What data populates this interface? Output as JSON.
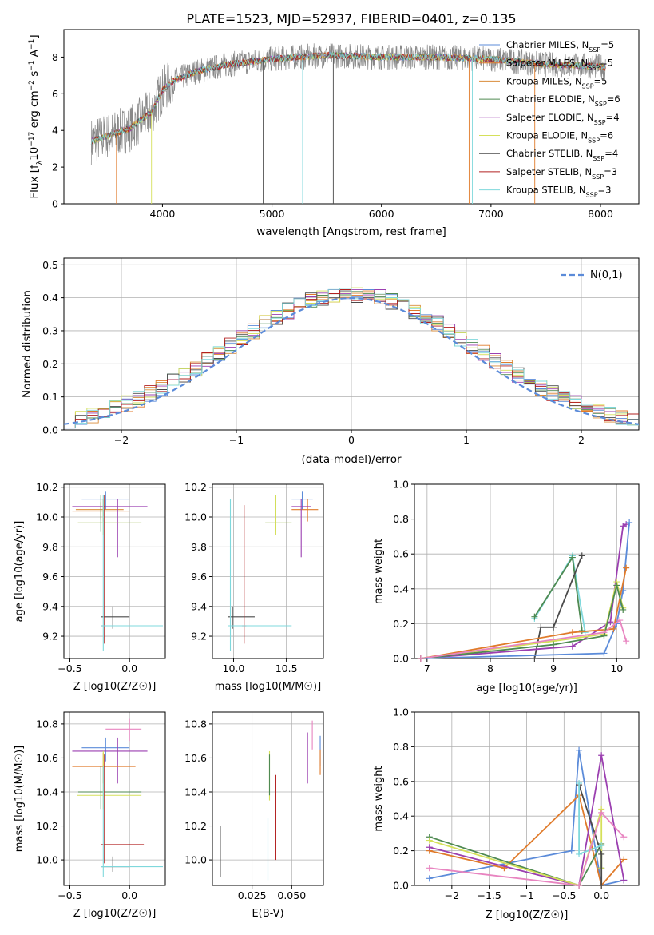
{
  "title": "PLATE=1523, MJD=52937, FIBERID=0401, z=0.135",
  "colors": {
    "c1": "#5b8bd9",
    "c2": "#e07b2b",
    "c3": "#d98b3a",
    "c4": "#4f8a52",
    "c5": "#9b3fb0",
    "c6": "#d5e05a",
    "c7": "#4a4a4a",
    "c8": "#b22020",
    "c9": "#7fd8dc",
    "pink": "#e884c0",
    "data": "#888888"
  },
  "legend_models": [
    {
      "label": "Chabrier MILES, N",
      "sub": "SSP",
      "tail": "=5",
      "color": "c1"
    },
    {
      "label": "Salpeter MILES, N",
      "sub": "SSP",
      "tail": "=5",
      "color": "c2"
    },
    {
      "label": "Kroupa MILES, N",
      "sub": "SSP",
      "tail": "=5",
      "color": "c3"
    },
    {
      "label": "Chabrier ELODIE, N",
      "sub": "SSP",
      "tail": "=6",
      "color": "c4"
    },
    {
      "label": "Salpeter ELODIE, N",
      "sub": "SSP",
      "tail": "=4",
      "color": "c5"
    },
    {
      "label": "Kroupa ELODIE, N",
      "sub": "SSP",
      "tail": "=6",
      "color": "c6"
    },
    {
      "label": "Chabrier STELIB, N",
      "sub": "SSP",
      "tail": "=4",
      "color": "c7"
    },
    {
      "label": "Salpeter STELIB, N",
      "sub": "SSP",
      "tail": "=3",
      "color": "c8"
    },
    {
      "label": "Kroupa STELIB, N",
      "sub": "SSP",
      "tail": "=3",
      "color": "c9"
    }
  ],
  "chart_data": [
    {
      "type": "line",
      "id": "spectrum",
      "xlabel": "wavelength [Angstrom, rest frame]",
      "ylabel": "Flux [f",
      "xlim": [
        3100,
        8350
      ],
      "ylim": [
        0,
        9.5
      ],
      "xticks": [
        4000,
        5000,
        6000,
        7000,
        8000
      ],
      "yticks": [
        0,
        2,
        4,
        6,
        8
      ],
      "continuum_x": [
        3350,
        3500,
        3700,
        3900,
        4000,
        4100,
        4300,
        4600,
        5000,
        5500,
        6000,
        6500,
        7000,
        7500,
        8000,
        8050
      ],
      "continuum_y": [
        3.4,
        3.7,
        4.1,
        5.0,
        6.2,
        6.7,
        7.2,
        7.6,
        7.9,
        8.1,
        8.0,
        8.0,
        7.9,
        7.6,
        7.5,
        7.4
      ]
    },
    {
      "type": "line",
      "id": "residuals",
      "xlabel": "(data-model)/error",
      "ylabel": "Normed distribution",
      "legend": "N(0,1)",
      "xlim": [
        -2.5,
        2.5
      ],
      "ylim": [
        0,
        0.52
      ],
      "xticks": [
        -2,
        -1,
        0,
        1,
        2
      ],
      "yticks": [
        0.0,
        0.1,
        0.2,
        0.3,
        0.4,
        0.5
      ],
      "bins": [
        -2.5,
        -2.4,
        -2.3,
        -2.2,
        -2.1,
        -2.0,
        -1.9,
        -1.8,
        -1.7,
        -1.6,
        -1.5,
        -1.4,
        -1.3,
        -1.2,
        -1.1,
        -1.0,
        -0.9,
        -0.8,
        -0.7,
        -0.6,
        -0.5,
        -0.4,
        -0.3,
        -0.2,
        -0.1,
        0.0,
        0.1,
        0.2,
        0.3,
        0.4,
        0.5,
        0.6,
        0.7,
        0.8,
        0.9,
        1.0,
        1.1,
        1.2,
        1.3,
        1.4,
        1.5,
        1.6,
        1.7,
        1.8,
        1.9,
        2.0,
        2.1,
        2.2,
        2.3,
        2.4,
        2.5
      ]
    },
    {
      "type": "scatter",
      "id": "age_vs_Z",
      "xlabel": "Z [log10(Z/Z☉)]",
      "ylabel": "age [log10(age/yr)]",
      "xlim": [
        -0.55,
        0.3
      ],
      "ylim": [
        9.05,
        10.22
      ],
      "xticks": [
        -0.5,
        0.0
      ],
      "yticks": [
        9.2,
        9.4,
        9.6,
        9.8,
        10.0,
        10.2
      ],
      "points": [
        {
          "c": "c1",
          "x": -0.2,
          "y": 10.12,
          "xe": [
            -0.4,
            -0.0
          ],
          "ye": [
            10.05,
            10.17
          ]
        },
        {
          "c": "c2",
          "x": -0.22,
          "y": 10.04,
          "xe": [
            -0.48,
            0.0
          ],
          "ye": [
            9.97,
            10.12
          ]
        },
        {
          "c": "c3",
          "x": -0.24,
          "y": 10.05,
          "xe": [
            -0.45,
            -0.05
          ],
          "ye": [
            9.98,
            10.1
          ]
        },
        {
          "c": "c4",
          "x": -0.24,
          "y": 9.96,
          "xe": [
            -0.43,
            0.1
          ],
          "ye": [
            9.9,
            10.15
          ]
        },
        {
          "c": "c5",
          "x": -0.1,
          "y": 10.07,
          "xe": [
            -0.48,
            0.15
          ],
          "ye": [
            9.73,
            10.12
          ]
        },
        {
          "c": "c6",
          "x": -0.22,
          "y": 9.96,
          "xe": [
            -0.44,
            0.1
          ],
          "ye": [
            9.88,
            10.12
          ]
        },
        {
          "c": "c7",
          "x": -0.14,
          "y": 9.33,
          "xe": [
            -0.24,
            -0.0
          ],
          "ye": [
            9.25,
            9.4
          ]
        },
        {
          "c": "c8",
          "x": -0.21,
          "y": 9.27,
          "xe": [
            -0.24,
            -0.2
          ],
          "ye": [
            9.15,
            10.15
          ]
        },
        {
          "c": "c9",
          "x": -0.22,
          "y": 9.27,
          "xe": [
            -0.24,
            0.28
          ],
          "ye": [
            9.1,
            10.15
          ]
        }
      ]
    },
    {
      "type": "scatter",
      "id": "age_vs_mass",
      "xlabel": "mass [log10(M/M☉)]",
      "ylabel": "",
      "xlim": [
        9.8,
        10.85
      ],
      "ylim": [
        9.05,
        10.22
      ],
      "xticks": [
        10.0,
        10.5
      ],
      "yticks": [
        9.2,
        9.4,
        9.6,
        9.8,
        10.0,
        10.2
      ],
      "points": [
        {
          "c": "c1",
          "x": 10.65,
          "y": 10.12,
          "xe": [
            10.55,
            10.75
          ],
          "ye": [
            10.05,
            10.17
          ]
        },
        {
          "c": "c2",
          "x": 10.7,
          "y": 10.05,
          "xe": [
            10.55,
            10.8
          ],
          "ye": [
            9.97,
            10.12
          ]
        },
        {
          "c": "c5",
          "x": 10.64,
          "y": 10.07,
          "xe": [
            10.55,
            10.73
          ],
          "ye": [
            9.73,
            10.12
          ]
        },
        {
          "c": "c4",
          "x": 10.4,
          "y": 9.96,
          "xe": [
            10.3,
            10.55
          ],
          "ye": [
            9.9,
            10.15
          ]
        },
        {
          "c": "c6",
          "x": 10.4,
          "y": 9.96,
          "xe": [
            10.3,
            10.55
          ],
          "ye": [
            9.88,
            10.15
          ]
        },
        {
          "c": "c7",
          "x": 9.99,
          "y": 9.33,
          "xe": [
            9.95,
            10.2
          ],
          "ye": [
            9.25,
            9.4
          ]
        },
        {
          "c": "c8",
          "x": 10.1,
          "y": 9.27,
          "xe": [
            10.08,
            10.12
          ],
          "ye": [
            9.15,
            10.08
          ]
        },
        {
          "c": "c9",
          "x": 9.97,
          "y": 9.27,
          "xe": [
            9.95,
            10.55
          ],
          "ye": [
            9.1,
            10.12
          ]
        }
      ]
    },
    {
      "type": "line",
      "id": "weight_vs_age",
      "xlabel": "age [log10(age/yr)]",
      "ylabel": "mass weight",
      "xlim": [
        6.8,
        10.35
      ],
      "ylim": [
        0,
        1
      ],
      "xticks": [
        7,
        8,
        9,
        10
      ],
      "yticks": [
        0.0,
        0.2,
        0.4,
        0.6,
        0.8,
        1.0
      ],
      "series": [
        {
          "c": "c9",
          "x": [
            8.7,
            9.3,
            9.5
          ],
          "y": [
            0.23,
            0.59,
            0.15
          ]
        },
        {
          "c": "c4",
          "x": [
            8.7,
            9.3,
            9.45
          ],
          "y": [
            0.24,
            0.58,
            0.16
          ]
        },
        {
          "c": "c7",
          "x": [
            8.7,
            8.8,
            9.0,
            9.45
          ],
          "y": [
            0.0,
            0.18,
            0.18,
            0.59
          ]
        },
        {
          "c": "c5",
          "x": [
            6.9,
            9.3,
            9.9,
            10.1,
            10.15
          ],
          "y": [
            0.0,
            0.07,
            0.21,
            0.76,
            0.77
          ]
        },
        {
          "c": "c1",
          "x": [
            6.9,
            9.8,
            10.0,
            10.1,
            10.2
          ],
          "y": [
            0.0,
            0.03,
            0.2,
            0.39,
            0.78
          ]
        },
        {
          "c": "c2",
          "x": [
            6.9,
            9.3,
            9.95,
            10.15
          ],
          "y": [
            0.0,
            0.15,
            0.17,
            0.52
          ]
        },
        {
          "c": "c6",
          "x": [
            6.9,
            9.0,
            9.8,
            10.0,
            10.1
          ],
          "y": [
            0.0,
            0.1,
            0.14,
            0.44,
            0.29
          ]
        },
        {
          "c": "c4",
          "x": [
            6.9,
            9.0,
            9.8,
            10.0,
            10.1
          ],
          "y": [
            0.0,
            0.08,
            0.13,
            0.42,
            0.28
          ]
        },
        {
          "c": "pink",
          "x": [
            6.9,
            9.8,
            10.05,
            10.15
          ],
          "y": [
            0.0,
            0.15,
            0.22,
            0.1
          ]
        }
      ]
    },
    {
      "type": "scatter",
      "id": "mass_vs_Z",
      "xlabel": "Z [log10(Z/Z☉)]",
      "ylabel": "mass [log10(M/M☉)]",
      "xlim": [
        -0.55,
        0.3
      ],
      "ylim": [
        9.85,
        10.87
      ],
      "xticks": [
        -0.5,
        0.0
      ],
      "yticks": [
        10.0,
        10.2,
        10.4,
        10.6,
        10.8
      ],
      "points": [
        {
          "c": "pink",
          "x": 0.0,
          "y": 10.77,
          "xe": [
            -0.2,
            0.1
          ],
          "ye": [
            10.7,
            10.83
          ]
        },
        {
          "c": "c1",
          "x": -0.2,
          "y": 10.66,
          "xe": [
            -0.4,
            -0.0
          ],
          "ye": [
            10.58,
            10.72
          ]
        },
        {
          "c": "c5",
          "x": -0.1,
          "y": 10.64,
          "xe": [
            -0.48,
            0.15
          ],
          "ye": [
            10.45,
            10.72
          ]
        },
        {
          "c": "c2",
          "x": -0.22,
          "y": 10.55,
          "xe": [
            -0.48,
            0.05
          ],
          "ye": [
            10.45,
            10.63
          ]
        },
        {
          "c": "c4",
          "x": -0.24,
          "y": 10.4,
          "xe": [
            -0.43,
            0.1
          ],
          "ye": [
            10.3,
            10.55
          ]
        },
        {
          "c": "c6",
          "x": -0.22,
          "y": 10.38,
          "xe": [
            -0.44,
            0.1
          ],
          "ye": [
            10.3,
            10.64
          ]
        },
        {
          "c": "c8",
          "x": -0.21,
          "y": 10.09,
          "xe": [
            -0.24,
            0.12
          ],
          "ye": [
            9.98,
            10.62
          ]
        },
        {
          "c": "c7",
          "x": -0.14,
          "y": 9.96,
          "xe": [
            -0.24,
            -0.0
          ],
          "ye": [
            9.93,
            10.02
          ]
        },
        {
          "c": "c9",
          "x": -0.22,
          "y": 9.96,
          "xe": [
            -0.24,
            0.28
          ],
          "ye": [
            9.9,
            10.55
          ]
        }
      ]
    },
    {
      "type": "scatter",
      "id": "mass_vs_EBV",
      "xlabel": "E(B-V)",
      "ylabel": "",
      "xlim": [
        0.0,
        0.07
      ],
      "ylim": [
        9.85,
        10.87
      ],
      "xticks": [
        0.025,
        0.05
      ],
      "yticks": [
        10.0,
        10.2,
        10.4,
        10.6,
        10.8
      ],
      "points": [
        {
          "c": "c7",
          "x": 0.005,
          "y": 10.05,
          "ye": [
            9.9,
            10.2
          ]
        },
        {
          "c": "c9",
          "x": 0.035,
          "y": 10.0,
          "ye": [
            9.88,
            10.25
          ]
        },
        {
          "c": "c6",
          "x": 0.036,
          "y": 10.5,
          "ye": [
            10.35,
            10.64
          ]
        },
        {
          "c": "c4",
          "x": 0.036,
          "y": 10.5,
          "ye": [
            10.38,
            10.62
          ]
        },
        {
          "c": "c8",
          "x": 0.04,
          "y": 10.25,
          "ye": [
            10.0,
            10.5
          ]
        },
        {
          "c": "c5",
          "x": 0.06,
          "y": 10.6,
          "ye": [
            10.45,
            10.75
          ]
        },
        {
          "c": "pink",
          "x": 0.063,
          "y": 10.75,
          "ye": [
            10.65,
            10.82
          ]
        },
        {
          "c": "c1",
          "x": 0.068,
          "y": 10.65,
          "ye": [
            10.55,
            10.73
          ]
        },
        {
          "c": "c2",
          "x": 0.068,
          "y": 10.6,
          "ye": [
            10.5,
            10.65
          ]
        }
      ]
    },
    {
      "type": "line",
      "id": "weight_vs_Z",
      "xlabel": "Z [log10(Z/Z☉)]",
      "ylabel": "mass weight",
      "xlim": [
        -2.5,
        0.5
      ],
      "ylim": [
        0,
        1
      ],
      "xticks": [
        -2.0,
        -1.5,
        -1.0,
        -0.5,
        0.0
      ],
      "yticks": [
        0.0,
        0.2,
        0.4,
        0.6,
        0.8,
        1.0
      ],
      "series": [
        {
          "c": "c1",
          "x": [
            -2.3,
            -0.4,
            -0.3,
            0.0,
            0.3
          ],
          "y": [
            0.04,
            0.2,
            0.78,
            0.0,
            0.03
          ]
        },
        {
          "c": "c2",
          "x": [
            -2.3,
            -1.3,
            -0.3,
            0.0,
            0.3
          ],
          "y": [
            0.2,
            0.1,
            0.52,
            0.0,
            0.15
          ]
        },
        {
          "c": "c4",
          "x": [
            -2.3,
            -0.3,
            0.0,
            0.0
          ],
          "y": [
            0.28,
            0.0,
            0.24,
            0.1
          ]
        },
        {
          "c": "c5",
          "x": [
            -2.3,
            -0.3,
            0.0,
            0.3
          ],
          "y": [
            0.22,
            0.0,
            0.75,
            0.03
          ]
        },
        {
          "c": "c6",
          "x": [
            -2.3,
            -0.3,
            0.0,
            0.0
          ],
          "y": [
            0.26,
            0.0,
            0.44,
            0.1
          ]
        },
        {
          "c": "c7",
          "x": [
            -0.3,
            0.0,
            0.0
          ],
          "y": [
            0.58,
            0.18,
            0.0
          ]
        },
        {
          "c": "c9",
          "x": [
            -0.3,
            -0.3,
            0.0
          ],
          "y": [
            0.59,
            0.18,
            0.23
          ]
        },
        {
          "c": "pink",
          "x": [
            -2.3,
            -0.3,
            0.0,
            0.3
          ],
          "y": [
            0.1,
            0.0,
            0.42,
            0.28
          ]
        }
      ]
    }
  ]
}
